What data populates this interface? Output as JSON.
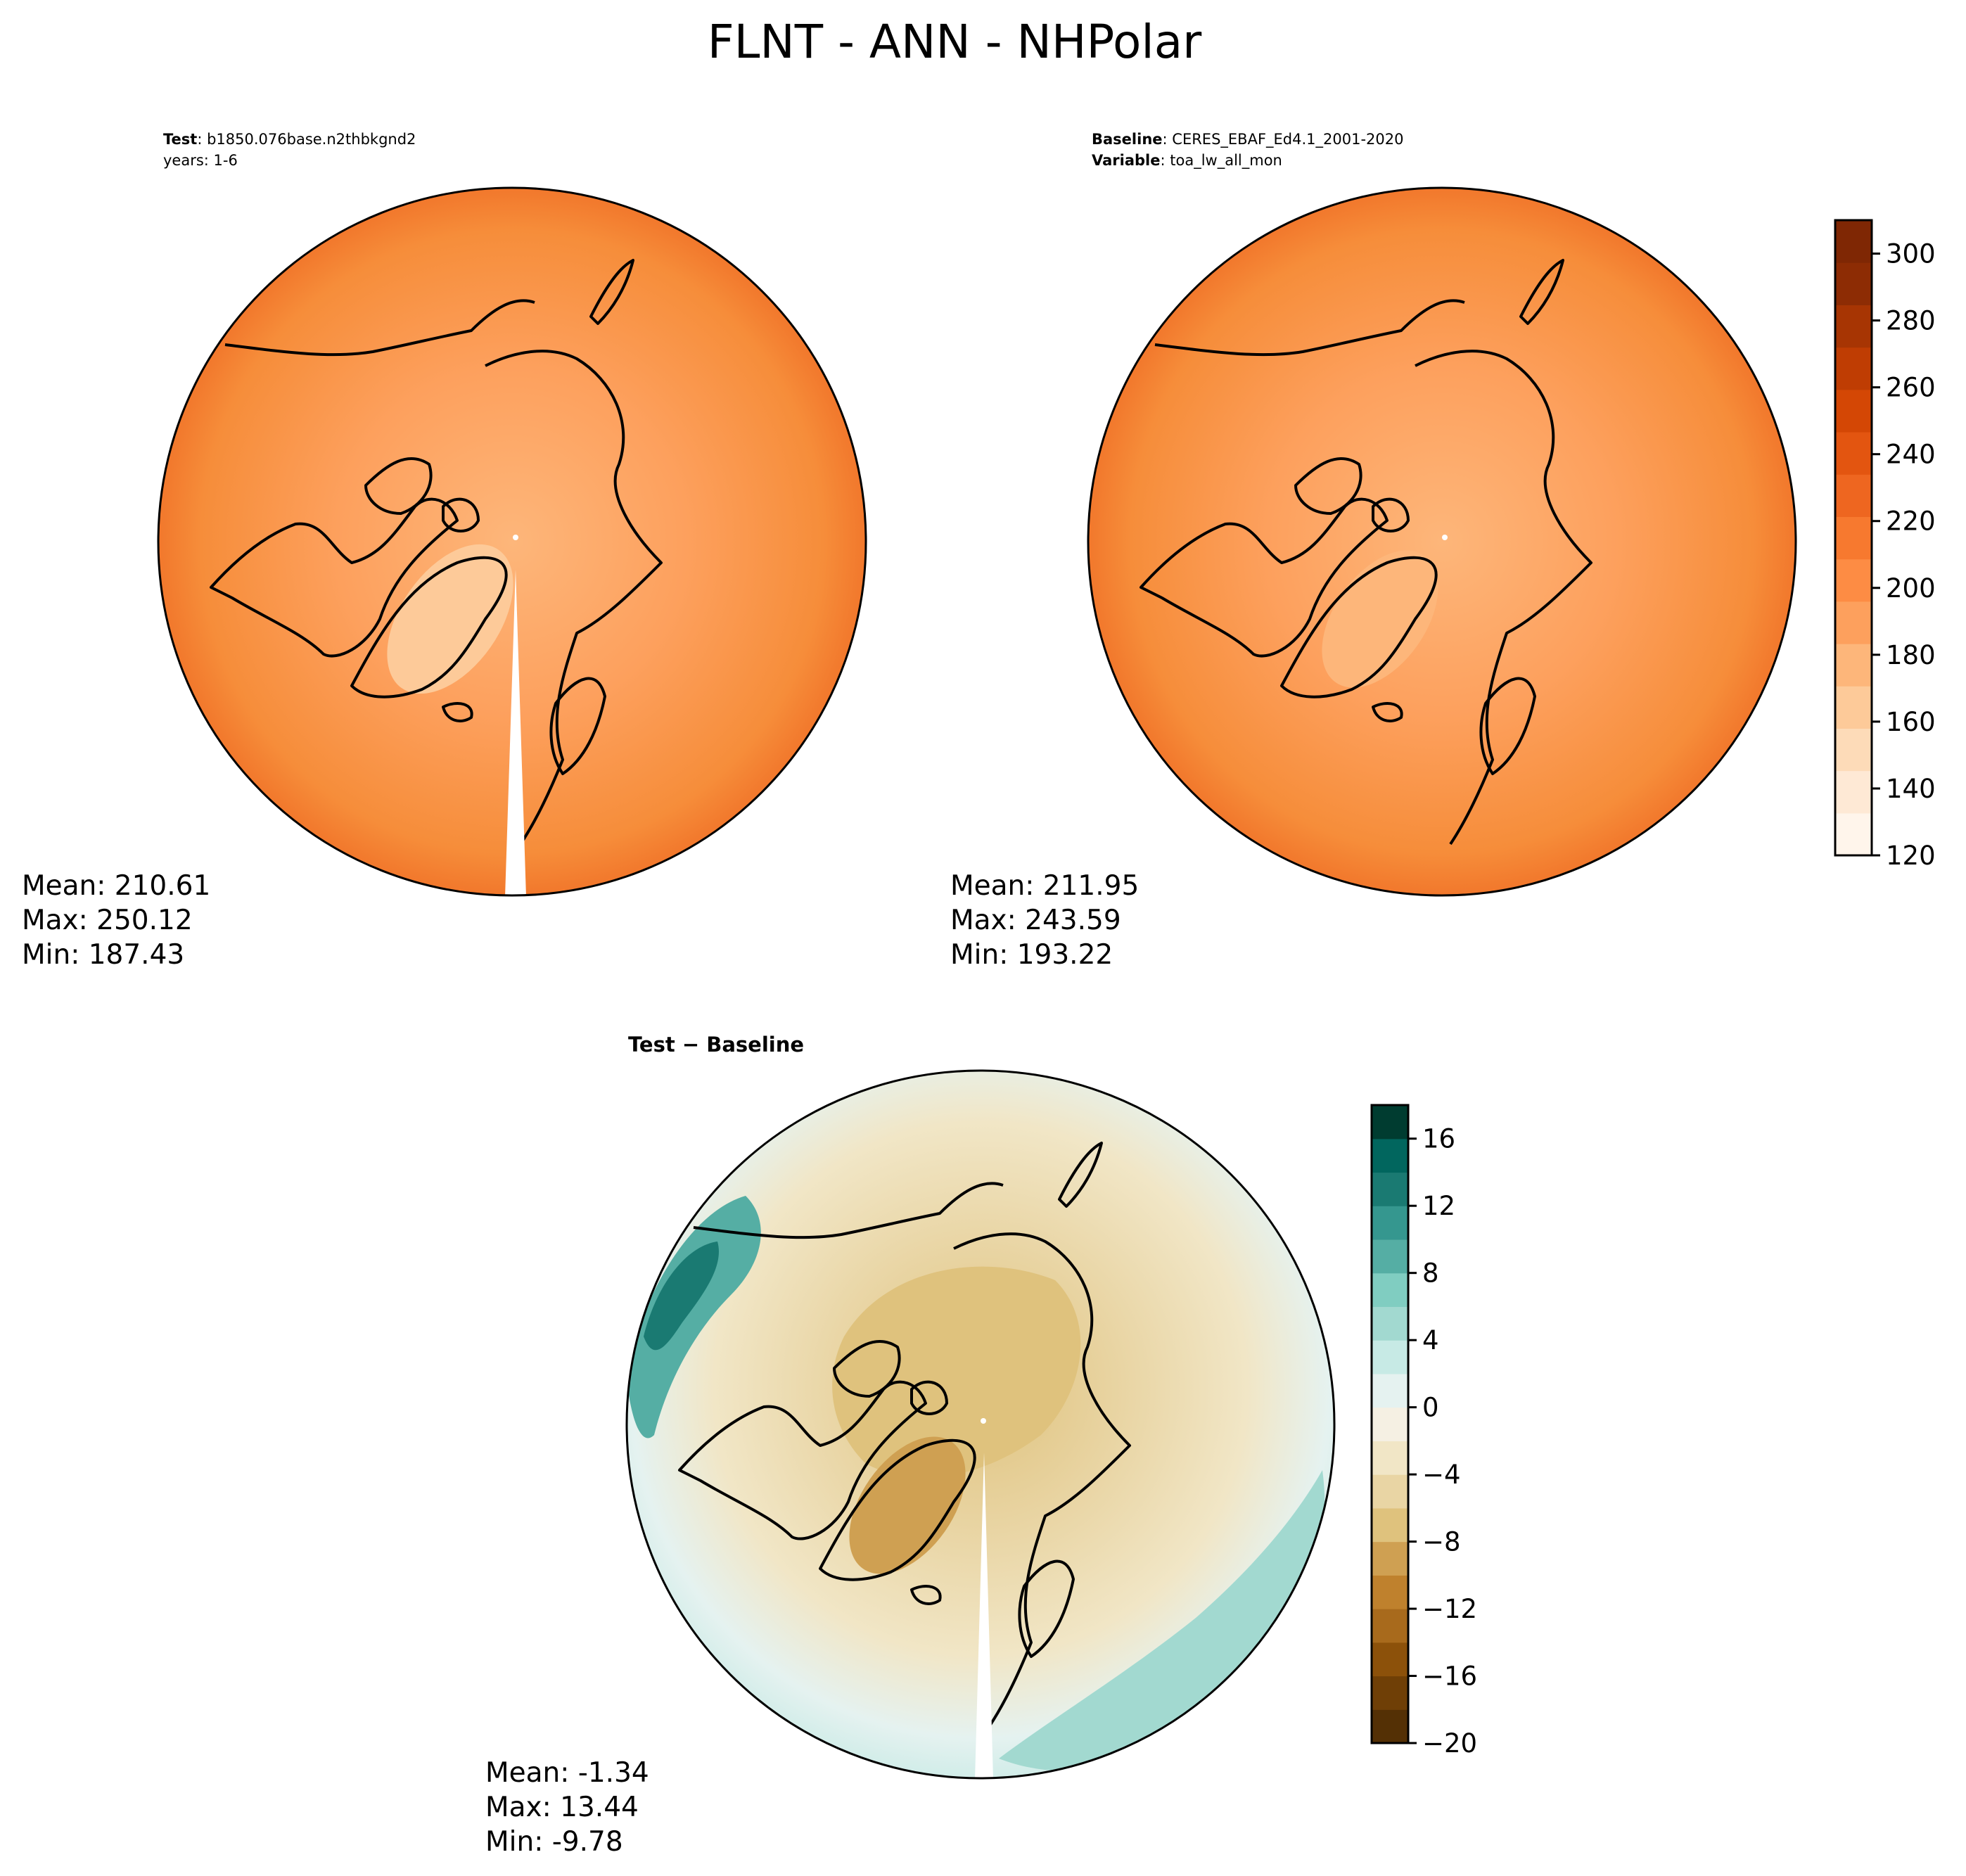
{
  "figure": {
    "title": "FLNT - ANN - NHPolar"
  },
  "panels": [
    {
      "id": "test",
      "header": [
        {
          "key": "Test",
          "value": "b1850.076base.n2thbkgnd2"
        },
        {
          "key": "",
          "value": "years: 1-6"
        }
      ],
      "stats": [
        "Mean: 210.61",
        "Max: 250.12",
        "Min: 187.43"
      ],
      "stats_values": {
        "mean": 210.61,
        "max": 250.12,
        "min": 187.43
      },
      "map_fill": "#f68d3a"
    },
    {
      "id": "baseline",
      "header": [
        {
          "key": "Baseline",
          "value": "CERES_EBAF_Ed4.1_2001-2020"
        },
        {
          "key": "Variable",
          "value": "toa_lw_all_mon"
        }
      ],
      "stats": [
        "Mean: 211.95",
        "Max: 243.59",
        "Min: 193.22"
      ],
      "stats_values": {
        "mean": 211.95,
        "max": 243.59,
        "min": 193.22
      },
      "map_fill": "#f58534"
    },
    {
      "id": "diff",
      "header_title": "Test − Baseline",
      "stats": [
        "Mean: -1.34",
        "Max: 13.44",
        "Min: -9.78"
      ],
      "stats_values": {
        "mean": -1.34,
        "max": 13.44,
        "min": -9.78
      },
      "map_fill": "#f2e6c8"
    }
  ],
  "colorbar_abs": {
    "min": 120,
    "max": 310,
    "ticks": [
      120,
      140,
      160,
      180,
      200,
      220,
      240,
      260,
      280,
      300
    ],
    "tick_labels": [
      "120",
      "140",
      "160",
      "180",
      "200",
      "220",
      "240",
      "260",
      "280",
      "300"
    ],
    "colors": [
      "#fff5eb",
      "#fee9d5",
      "#fddbb8",
      "#fdca99",
      "#fdb67a",
      "#fda05d",
      "#fd8c44",
      "#f7792f",
      "#ee6620",
      "#e35510",
      "#d44705",
      "#bf3d03",
      "#a73503",
      "#8d2c04",
      "#7f2704"
    ]
  },
  "colorbar_diff": {
    "min": -20,
    "max": 18,
    "ticks": [
      -20,
      -16,
      -12,
      -8,
      -4,
      0,
      4,
      8,
      12,
      16
    ],
    "tick_labels": [
      "−20",
      "−16",
      "−12",
      "−8",
      "−4",
      "0",
      "4",
      "8",
      "12",
      "16"
    ],
    "colors": [
      "#543005",
      "#6f3f06",
      "#8c510a",
      "#a86a1c",
      "#bf812d",
      "#cfa052",
      "#dfc27d",
      "#e9d5a4",
      "#f1e6c6",
      "#f5f0e3",
      "#e5f2f0",
      "#c7eae5",
      "#a2d9d0",
      "#80cdc1",
      "#55aea4",
      "#35978f",
      "#1a7a72",
      "#01665e",
      "#003c30"
    ]
  }
}
